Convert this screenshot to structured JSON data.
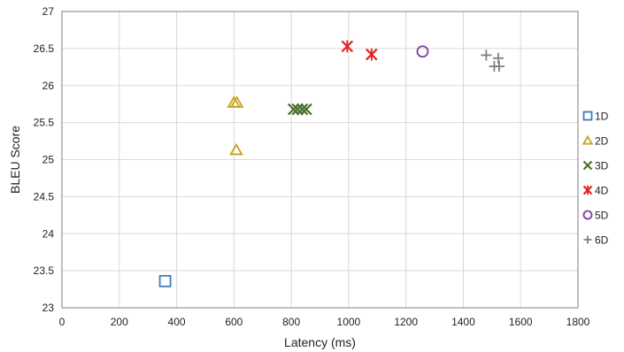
{
  "chart_data": {
    "type": "scatter",
    "xlabel": "Latency (ms)",
    "ylabel": "BLEU Score",
    "xlim": [
      0,
      1800
    ],
    "ylim": [
      23,
      27
    ],
    "xticks": [
      0,
      200,
      400,
      600,
      800,
      1000,
      1200,
      1400,
      1600,
      1800
    ],
    "yticks": [
      23,
      23.5,
      24,
      24.5,
      25,
      25.5,
      26,
      26.5,
      27
    ],
    "grid": true,
    "legend_position": "right",
    "series": [
      {
        "name": "1D",
        "marker": "square",
        "color": "#3d7ebf",
        "points": [
          [
            360,
            23.36
          ]
        ]
      },
      {
        "name": "2D",
        "marker": "triangle",
        "color": "#c9a21a",
        "points": [
          [
            600,
            25.77
          ],
          [
            610,
            25.77
          ],
          [
            608,
            25.13
          ]
        ]
      },
      {
        "name": "3D",
        "marker": "x",
        "color": "#4a7230",
        "points": [
          [
            808,
            25.68
          ],
          [
            822,
            25.68
          ],
          [
            838,
            25.68
          ],
          [
            852,
            25.68
          ]
        ]
      },
      {
        "name": "4D",
        "marker": "asterisk",
        "color": "#e8201e",
        "points": [
          [
            995,
            26.53
          ],
          [
            1080,
            26.42
          ]
        ]
      },
      {
        "name": "5D",
        "marker": "circle",
        "color": "#7b3fa0",
        "points": [
          [
            1258,
            26.46
          ]
        ]
      },
      {
        "name": "6D",
        "marker": "plus",
        "color": "#7f7f7f",
        "points": [
          [
            1480,
            26.41
          ],
          [
            1522,
            26.37
          ],
          [
            1508,
            26.26
          ],
          [
            1525,
            26.26
          ]
        ]
      }
    ]
  }
}
